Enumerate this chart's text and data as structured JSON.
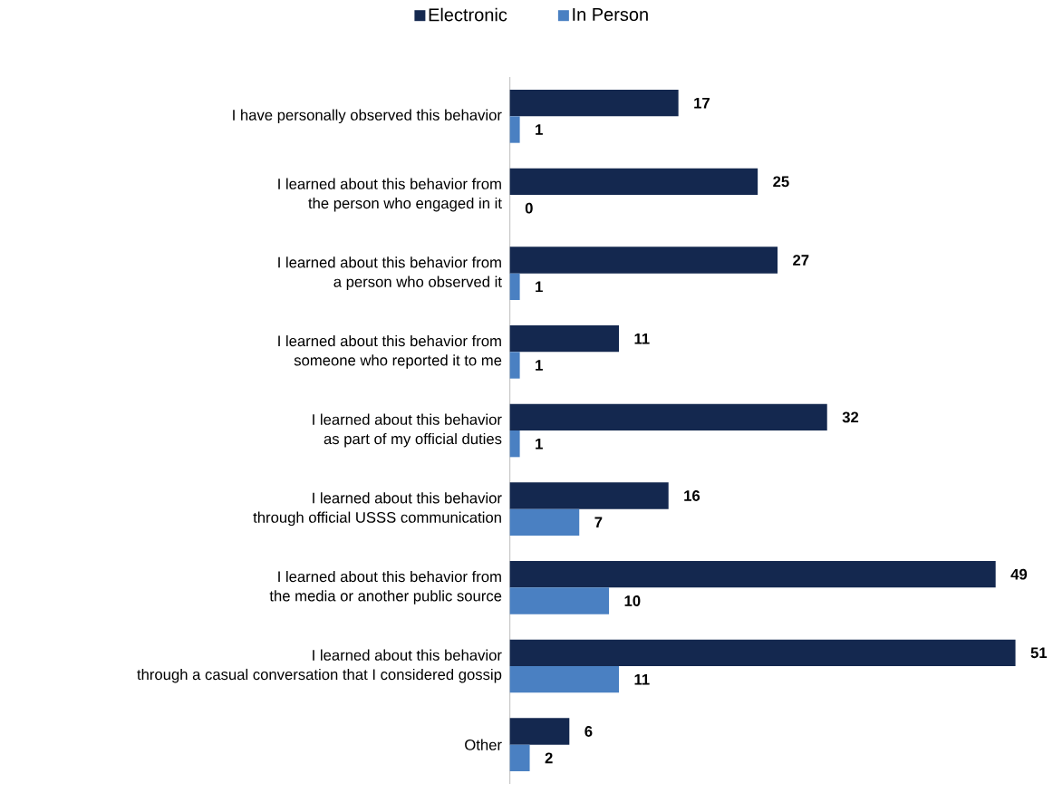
{
  "chart_data": {
    "type": "bar",
    "orientation": "horizontal",
    "legend": "top",
    "data_labels": true,
    "tick_labels": "y",
    "categories": [
      "I have personally observed this behavior",
      "I learned about this behavior from\nthe person who engaged in it",
      "I learned about this behavior from\na person who observed it",
      "I learned about this behavior from\nsomeone who reported it to me",
      "I learned about this behavior\nas part of my official duties",
      "I learned about this behavior\nthrough official USSS communication",
      "I learned about this behavior from\nthe media or another public source",
      "I learned about this behavior\nthrough a casual conversation that I considered gossip",
      "Other"
    ],
    "series": [
      {
        "name": "Electronic",
        "color": "#14284f",
        "values": [
          17,
          25,
          27,
          11,
          32,
          16,
          49,
          51,
          6
        ]
      },
      {
        "name": "In Person",
        "color": "#4a80c2",
        "values": [
          1,
          0,
          1,
          1,
          1,
          7,
          10,
          11,
          2
        ]
      }
    ]
  }
}
